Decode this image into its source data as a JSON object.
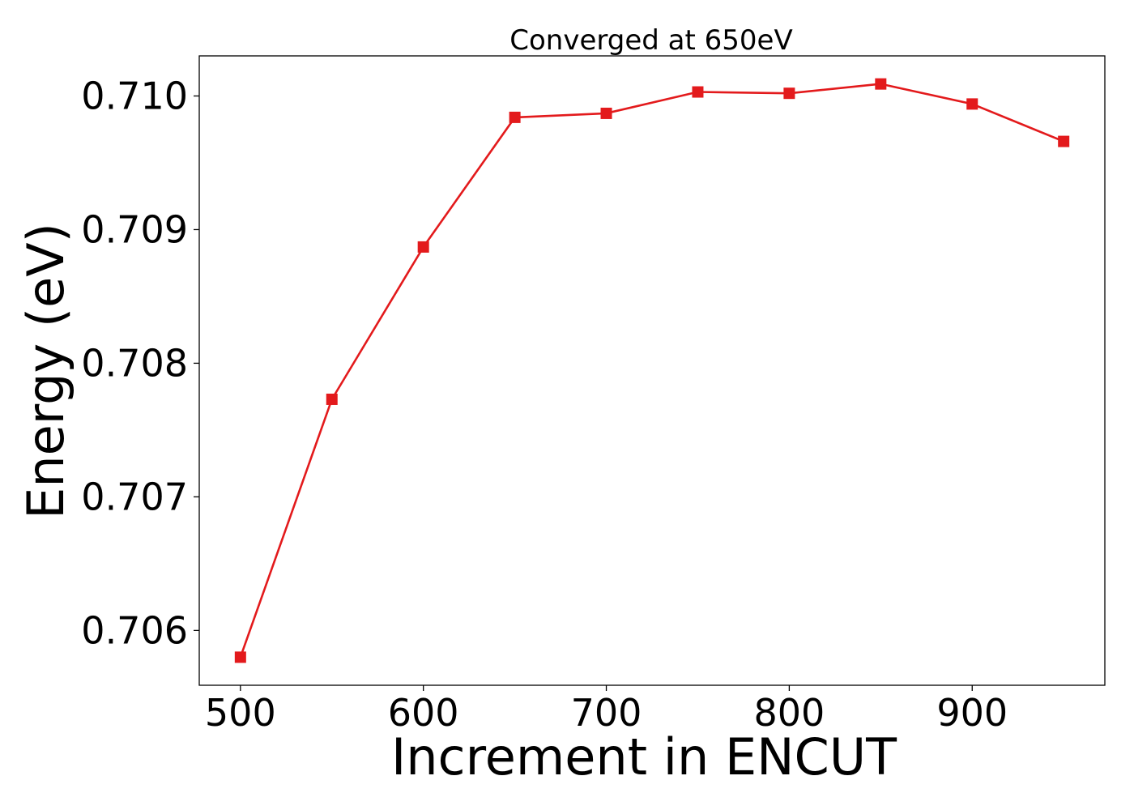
{
  "chart_data": {
    "type": "line",
    "title": "Converged at 650eV",
    "xlabel": "Increment in ENCUT",
    "ylabel": "Energy (eV)",
    "x": [
      500,
      550,
      600,
      650,
      700,
      750,
      800,
      850,
      900,
      950
    ],
    "series": [
      {
        "values": [
          0.7058,
          0.70773,
          0.70887,
          0.70984,
          0.70987,
          0.71003,
          0.71002,
          0.71009,
          0.70994,
          0.70966
        ],
        "color": "#e31a1c",
        "marker": "square"
      }
    ],
    "xticks": [
      500,
      600,
      700,
      800,
      900
    ],
    "xtick_labels": [
      "500",
      "600",
      "700",
      "800",
      "900"
    ],
    "yticks": [
      0.706,
      0.707,
      0.708,
      0.709,
      0.71
    ],
    "ytick_labels": [
      "0.706",
      "0.707",
      "0.708",
      "0.709",
      "0.710"
    ],
    "xlim": [
      477.5,
      972.5
    ],
    "ylim": [
      0.70559,
      0.7103
    ],
    "grid": false,
    "legend": false
  }
}
